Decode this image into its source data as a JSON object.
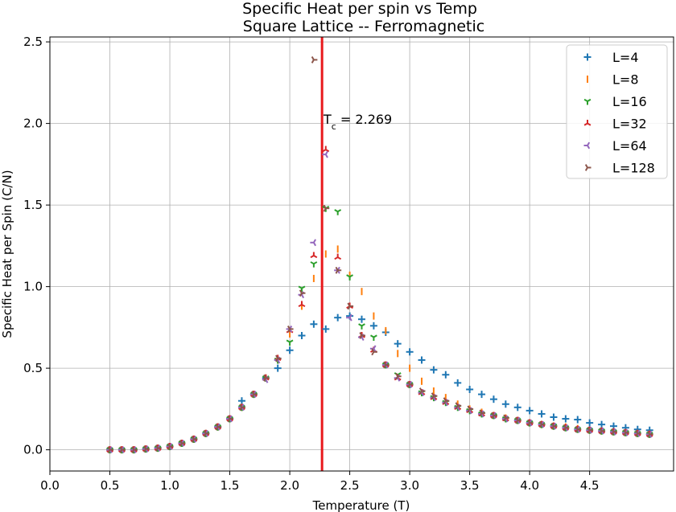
{
  "chart_data": {
    "type": "scatter",
    "title": "Specific Heat per spin vs Temp",
    "subtitle": "Square Lattice -- Ferromagnetic",
    "xlabel": "Temperature (T)",
    "ylabel": "Specific Heat per Spin (C/N)",
    "xlim": [
      0.0,
      5.2
    ],
    "ylim": [
      -0.13,
      2.53
    ],
    "xticks": [
      "0.0",
      "0.5",
      "1.0",
      "1.5",
      "2.0",
      "2.5",
      "3.0",
      "3.5",
      "4.0",
      "4.5"
    ],
    "yticks": [
      "0.0",
      "0.5",
      "1.0",
      "1.5",
      "2.0",
      "2.5"
    ],
    "grid": true,
    "legend_position": "top-right",
    "critical_line": {
      "x": 2.269,
      "color": "#e8191c",
      "label_prefix": "T",
      "label_sub": "c",
      "label_suffix": " = 2.269"
    },
    "series": [
      {
        "name": "L=4",
        "color": "#1f77b4",
        "marker": "plus",
        "x": [
          0.5,
          0.6,
          0.7,
          0.8,
          0.9,
          1.0,
          1.1,
          1.2,
          1.3,
          1.4,
          1.5,
          1.6,
          1.7,
          1.8,
          1.9,
          2.0,
          2.1,
          2.2,
          2.3,
          2.4,
          2.5,
          2.6,
          2.7,
          2.8,
          2.9,
          3.0,
          3.1,
          3.2,
          3.3,
          3.4,
          3.5,
          3.6,
          3.7,
          3.8,
          3.9,
          4.0,
          4.1,
          4.2,
          4.3,
          4.4,
          4.5,
          4.6,
          4.7,
          4.8,
          4.9,
          5.0
        ],
        "y": [
          0.0,
          0.0,
          0.0,
          0.005,
          0.01,
          0.02,
          0.04,
          0.065,
          0.1,
          0.14,
          0.19,
          0.3,
          0.34,
          0.44,
          0.5,
          0.61,
          0.7,
          0.77,
          0.74,
          0.81,
          0.82,
          0.8,
          0.76,
          0.72,
          0.65,
          0.6,
          0.55,
          0.49,
          0.46,
          0.41,
          0.37,
          0.34,
          0.31,
          0.28,
          0.26,
          0.24,
          0.22,
          0.2,
          0.19,
          0.185,
          0.165,
          0.155,
          0.145,
          0.135,
          0.125,
          0.12
        ]
      },
      {
        "name": "L=8",
        "color": "#ff7f0e",
        "marker": "vline",
        "x": [
          0.5,
          0.6,
          0.7,
          0.8,
          0.9,
          1.0,
          1.1,
          1.2,
          1.3,
          1.4,
          1.5,
          1.6,
          1.7,
          1.8,
          1.9,
          2.0,
          2.1,
          2.2,
          2.3,
          2.4,
          2.5,
          2.6,
          2.7,
          2.8,
          2.9,
          3.0,
          3.1,
          3.2,
          3.3,
          3.4,
          3.5,
          3.6,
          3.7,
          3.8,
          3.9,
          4.0,
          4.1,
          4.2,
          4.3,
          4.4,
          4.5,
          4.6,
          4.7,
          4.8,
          4.9,
          5.0
        ],
        "y": [
          0.0,
          0.0,
          0.0,
          0.005,
          0.01,
          0.02,
          0.04,
          0.065,
          0.1,
          0.14,
          0.19,
          0.26,
          0.34,
          0.44,
          0.55,
          0.71,
          0.88,
          1.05,
          1.2,
          1.23,
          1.07,
          0.97,
          0.82,
          0.73,
          0.59,
          0.5,
          0.42,
          0.36,
          0.32,
          0.28,
          0.25,
          0.23,
          0.21,
          0.195,
          0.18,
          0.165,
          0.155,
          0.145,
          0.14,
          0.13,
          0.12,
          0.115,
          0.11,
          0.105,
          0.1,
          0.095
        ]
      },
      {
        "name": "L=16",
        "color": "#2ca02c",
        "marker": "tri_down",
        "x": [
          0.5,
          0.6,
          0.7,
          0.8,
          0.9,
          1.0,
          1.1,
          1.2,
          1.3,
          1.4,
          1.5,
          1.6,
          1.7,
          1.8,
          1.9,
          2.0,
          2.1,
          2.2,
          2.3,
          2.4,
          2.5,
          2.6,
          2.7,
          2.8,
          2.9,
          3.0,
          3.1,
          3.2,
          3.3,
          3.4,
          3.5,
          3.6,
          3.7,
          3.8,
          3.9,
          4.0,
          4.1,
          4.2,
          4.3,
          4.4,
          4.5,
          4.6,
          4.7,
          4.8,
          4.9,
          5.0
        ],
        "y": [
          0.0,
          0.0,
          0.0,
          0.005,
          0.01,
          0.02,
          0.04,
          0.065,
          0.1,
          0.14,
          0.19,
          0.26,
          0.34,
          0.44,
          0.55,
          0.66,
          0.99,
          1.14,
          1.48,
          1.46,
          1.06,
          0.76,
          0.69,
          0.52,
          0.46,
          0.4,
          0.35,
          0.32,
          0.29,
          0.26,
          0.24,
          0.22,
          0.21,
          0.19,
          0.18,
          0.165,
          0.155,
          0.145,
          0.135,
          0.125,
          0.12,
          0.115,
          0.11,
          0.105,
          0.1,
          0.095
        ]
      },
      {
        "name": "L=32",
        "color": "#d62728",
        "marker": "tri_up",
        "x": [
          0.5,
          0.6,
          0.7,
          0.8,
          0.9,
          1.0,
          1.1,
          1.2,
          1.3,
          1.4,
          1.5,
          1.6,
          1.7,
          1.8,
          1.9,
          2.0,
          2.1,
          2.2,
          2.3,
          2.4,
          2.5,
          2.6,
          2.7,
          2.8,
          2.9,
          3.0,
          3.1,
          3.2,
          3.3,
          3.4,
          3.5,
          3.6,
          3.7,
          3.8,
          3.9,
          4.0,
          4.1,
          4.2,
          4.3,
          4.4,
          4.5,
          4.6,
          4.7,
          4.8,
          4.9,
          5.0
        ],
        "y": [
          0.0,
          0.0,
          0.0,
          0.005,
          0.01,
          0.02,
          0.04,
          0.065,
          0.1,
          0.14,
          0.19,
          0.26,
          0.34,
          0.44,
          0.56,
          0.73,
          0.89,
          1.19,
          1.84,
          1.18,
          0.88,
          0.7,
          0.61,
          0.52,
          0.44,
          0.4,
          0.35,
          0.32,
          0.29,
          0.26,
          0.24,
          0.22,
          0.21,
          0.19,
          0.18,
          0.165,
          0.155,
          0.145,
          0.135,
          0.125,
          0.12,
          0.115,
          0.11,
          0.105,
          0.1,
          0.095
        ]
      },
      {
        "name": "L=64",
        "color": "#9467bd",
        "marker": "tri_left",
        "x": [
          0.5,
          0.6,
          0.7,
          0.8,
          0.9,
          1.0,
          1.1,
          1.2,
          1.3,
          1.4,
          1.5,
          1.6,
          1.7,
          1.8,
          1.9,
          2.0,
          2.1,
          2.2,
          2.3,
          2.4,
          2.5,
          2.6,
          2.7,
          2.8,
          2.9,
          3.0,
          3.1,
          3.2,
          3.3,
          3.4,
          3.5,
          3.6,
          3.7,
          3.8,
          3.9,
          4.0,
          4.1,
          4.2,
          4.3,
          4.4,
          4.5,
          4.6,
          4.7,
          4.8,
          4.9,
          5.0
        ],
        "y": [
          0.0,
          0.0,
          0.0,
          0.005,
          0.01,
          0.02,
          0.04,
          0.065,
          0.1,
          0.14,
          0.19,
          0.26,
          0.34,
          0.43,
          0.55,
          0.74,
          0.95,
          1.27,
          1.81,
          1.1,
          0.81,
          0.69,
          0.62,
          0.52,
          0.44,
          0.4,
          0.35,
          0.32,
          0.29,
          0.26,
          0.24,
          0.22,
          0.21,
          0.19,
          0.18,
          0.165,
          0.155,
          0.145,
          0.135,
          0.125,
          0.12,
          0.115,
          0.11,
          0.105,
          0.1,
          0.095
        ]
      },
      {
        "name": "L=128",
        "color": "#8c564b",
        "marker": "tri_right",
        "x": [
          0.5,
          0.6,
          0.7,
          0.8,
          0.9,
          1.0,
          1.1,
          1.2,
          1.3,
          1.4,
          1.5,
          1.6,
          1.7,
          1.8,
          1.9,
          2.0,
          2.1,
          2.2,
          2.3,
          2.4,
          2.5,
          2.6,
          2.7,
          2.8,
          2.9,
          3.0,
          3.1,
          3.2,
          3.3,
          3.4,
          3.5,
          3.6,
          3.7,
          3.8,
          3.9,
          4.0,
          4.1,
          4.2,
          4.3,
          4.4,
          4.5,
          4.6,
          4.7,
          4.8,
          4.9,
          5.0
        ],
        "y": [
          0.0,
          0.0,
          0.0,
          0.005,
          0.01,
          0.02,
          0.04,
          0.065,
          0.1,
          0.14,
          0.19,
          0.26,
          0.34,
          0.44,
          0.56,
          0.74,
          0.96,
          2.39,
          1.48,
          1.1,
          0.88,
          0.7,
          0.6,
          0.52,
          0.45,
          0.4,
          0.36,
          0.33,
          0.3,
          0.27,
          0.25,
          0.225,
          0.21,
          0.195,
          0.18,
          0.165,
          0.155,
          0.145,
          0.135,
          0.125,
          0.12,
          0.115,
          0.11,
          0.105,
          0.1,
          0.095
        ]
      }
    ]
  }
}
